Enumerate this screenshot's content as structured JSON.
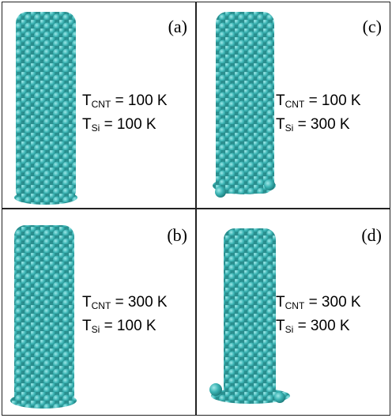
{
  "panels": [
    {
      "label": "(a)",
      "lines": [
        {
          "symbol": "T",
          "sub": "CNT",
          "value": "= 100 K"
        },
        {
          "symbol": "T",
          "sub": "Si",
          "value": "= 100 K"
        }
      ]
    },
    {
      "label": "(c)",
      "lines": [
        {
          "symbol": "T",
          "sub": "CNT",
          "value": "= 100 K"
        },
        {
          "symbol": "T",
          "sub": "Si",
          "value": "= 300 K"
        }
      ]
    },
    {
      "label": "(b)",
      "lines": [
        {
          "symbol": "T",
          "sub": "CNT",
          "value": "= 300 K"
        },
        {
          "symbol": "T",
          "sub": "Si",
          "value": "= 100 K"
        }
      ]
    },
    {
      "label": "(d)",
      "lines": [
        {
          "symbol": "T",
          "sub": "CNT",
          "value": "= 300 K"
        },
        {
          "symbol": "T",
          "sub": "Si",
          "value": "= 300 K"
        }
      ]
    }
  ]
}
